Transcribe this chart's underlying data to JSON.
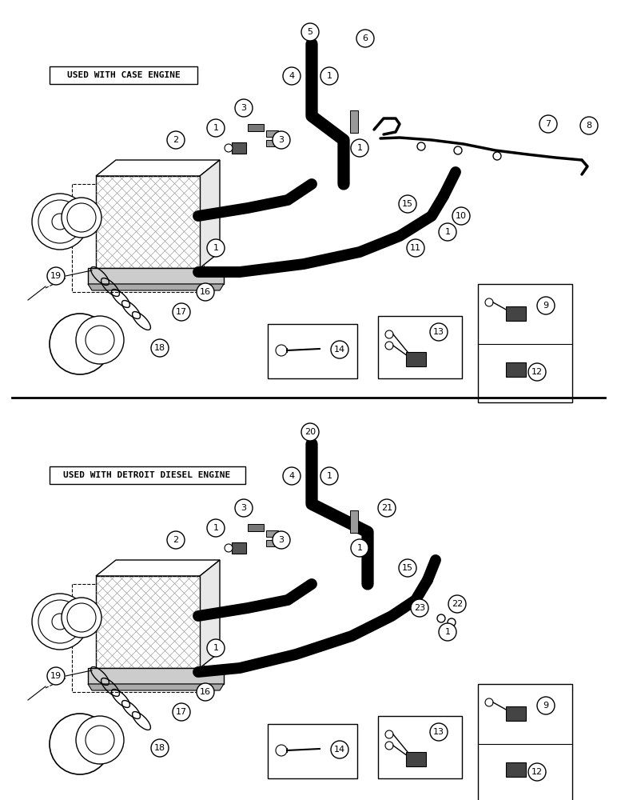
{
  "bg_color": "#ffffff",
  "section1_label": "USED WITH CASE ENGINE",
  "section2_label": "USED WITH DETROIT DIESEL ENGINE",
  "fig_width": 7.72,
  "fig_height": 10.0,
  "dpi": 100
}
